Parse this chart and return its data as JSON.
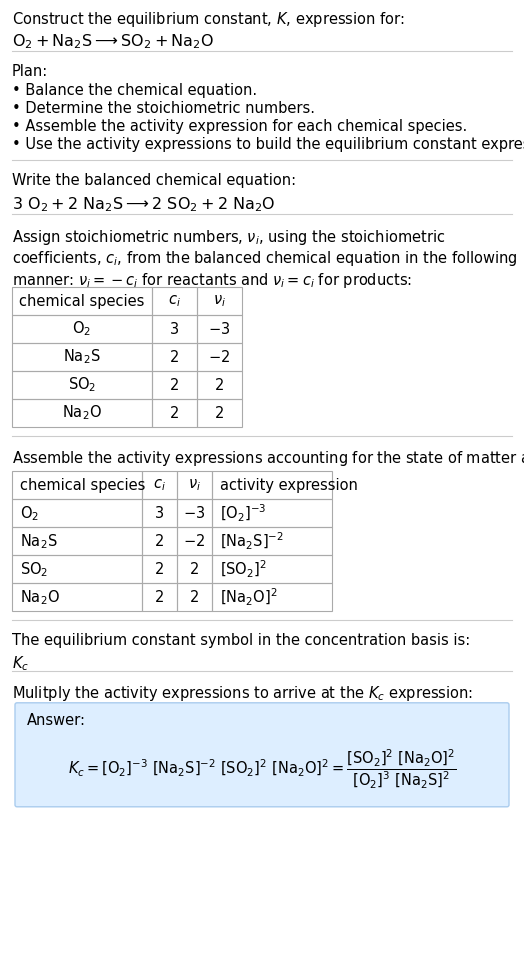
{
  "title_line1": "Construct the equilibrium constant, $K$, expression for:",
  "title_line2": "$\\mathrm{O_2 + Na_2S \\longrightarrow SO_2 + Na_2O}$",
  "plan_header": "Plan:",
  "plan_items": [
    "\\bullet\\ Balance the chemical equation.",
    "\\bullet\\ Determine the stoichiometric numbers.",
    "\\bullet\\ Assemble the activity expression for each chemical species.",
    "\\bullet\\ Use the activity expressions to build the equilibrium constant expression."
  ],
  "balanced_header": "Write the balanced chemical equation:",
  "balanced_eq": "$\\mathrm{3\\ O_2 + 2\\ Na_2S \\longrightarrow 2\\ SO_2 + 2\\ Na_2O}$",
  "stoich_header": "Assign stoichiometric numbers, $\\nu_i$, using the stoichiometric coefficients, $c_i$, from the balanced chemical equation in the following manner: $\\nu_i = -c_i$ for reactants and $\\nu_i = c_i$ for products:",
  "table1_cols": [
    "chemical species",
    "$c_i$",
    "$\\nu_i$"
  ],
  "table1_rows": [
    [
      "$\\mathrm{O_2}$",
      "3",
      "$-3$"
    ],
    [
      "$\\mathrm{Na_2S}$",
      "2",
      "$-2$"
    ],
    [
      "$\\mathrm{SO_2}$",
      "2",
      "2"
    ],
    [
      "$\\mathrm{Na_2O}$",
      "2",
      "2"
    ]
  ],
  "activity_header": "Assemble the activity expressions accounting for the state of matter and $\\nu_i$:",
  "table2_cols": [
    "chemical species",
    "$c_i$",
    "$\\nu_i$",
    "activity expression"
  ],
  "table2_rows": [
    [
      "$\\mathrm{O_2}$",
      "3",
      "$-3$",
      "$[\\mathrm{O_2}]^{-3}$"
    ],
    [
      "$\\mathrm{Na_2S}$",
      "2",
      "$-2$",
      "$[\\mathrm{Na_2S}]^{-2}$"
    ],
    [
      "$\\mathrm{SO_2}$",
      "2",
      "2",
      "$[\\mathrm{SO_2}]^{2}$"
    ],
    [
      "$\\mathrm{Na_2O}$",
      "2",
      "2",
      "$[\\mathrm{Na_2O}]^{2}$"
    ]
  ],
  "kc_line1": "The equilibrium constant symbol in the concentration basis is:",
  "kc_symbol": "$K_c$",
  "multiply_header": "Mulitply the activity expressions to arrive at the $K_c$ expression:",
  "answer_line1": "$K_c = [\\mathrm{O_2}]^{-3}\\ [\\mathrm{Na_2S}]^{-2}\\ [\\mathrm{SO_2}]^{2}\\ [\\mathrm{Na_2O}]^{2} = \\dfrac{[\\mathrm{SO_2}]^{2}\\ [\\mathrm{Na_2O}]^{2}}{[\\mathrm{O_2}]^{3}\\ [\\mathrm{Na_2S}]^{2}}$",
  "bg_color": "#ffffff",
  "table_border_color": "#aaaaaa",
  "answer_box_color": "#ddeeff",
  "text_color": "#000000",
  "font_size": 10.5
}
